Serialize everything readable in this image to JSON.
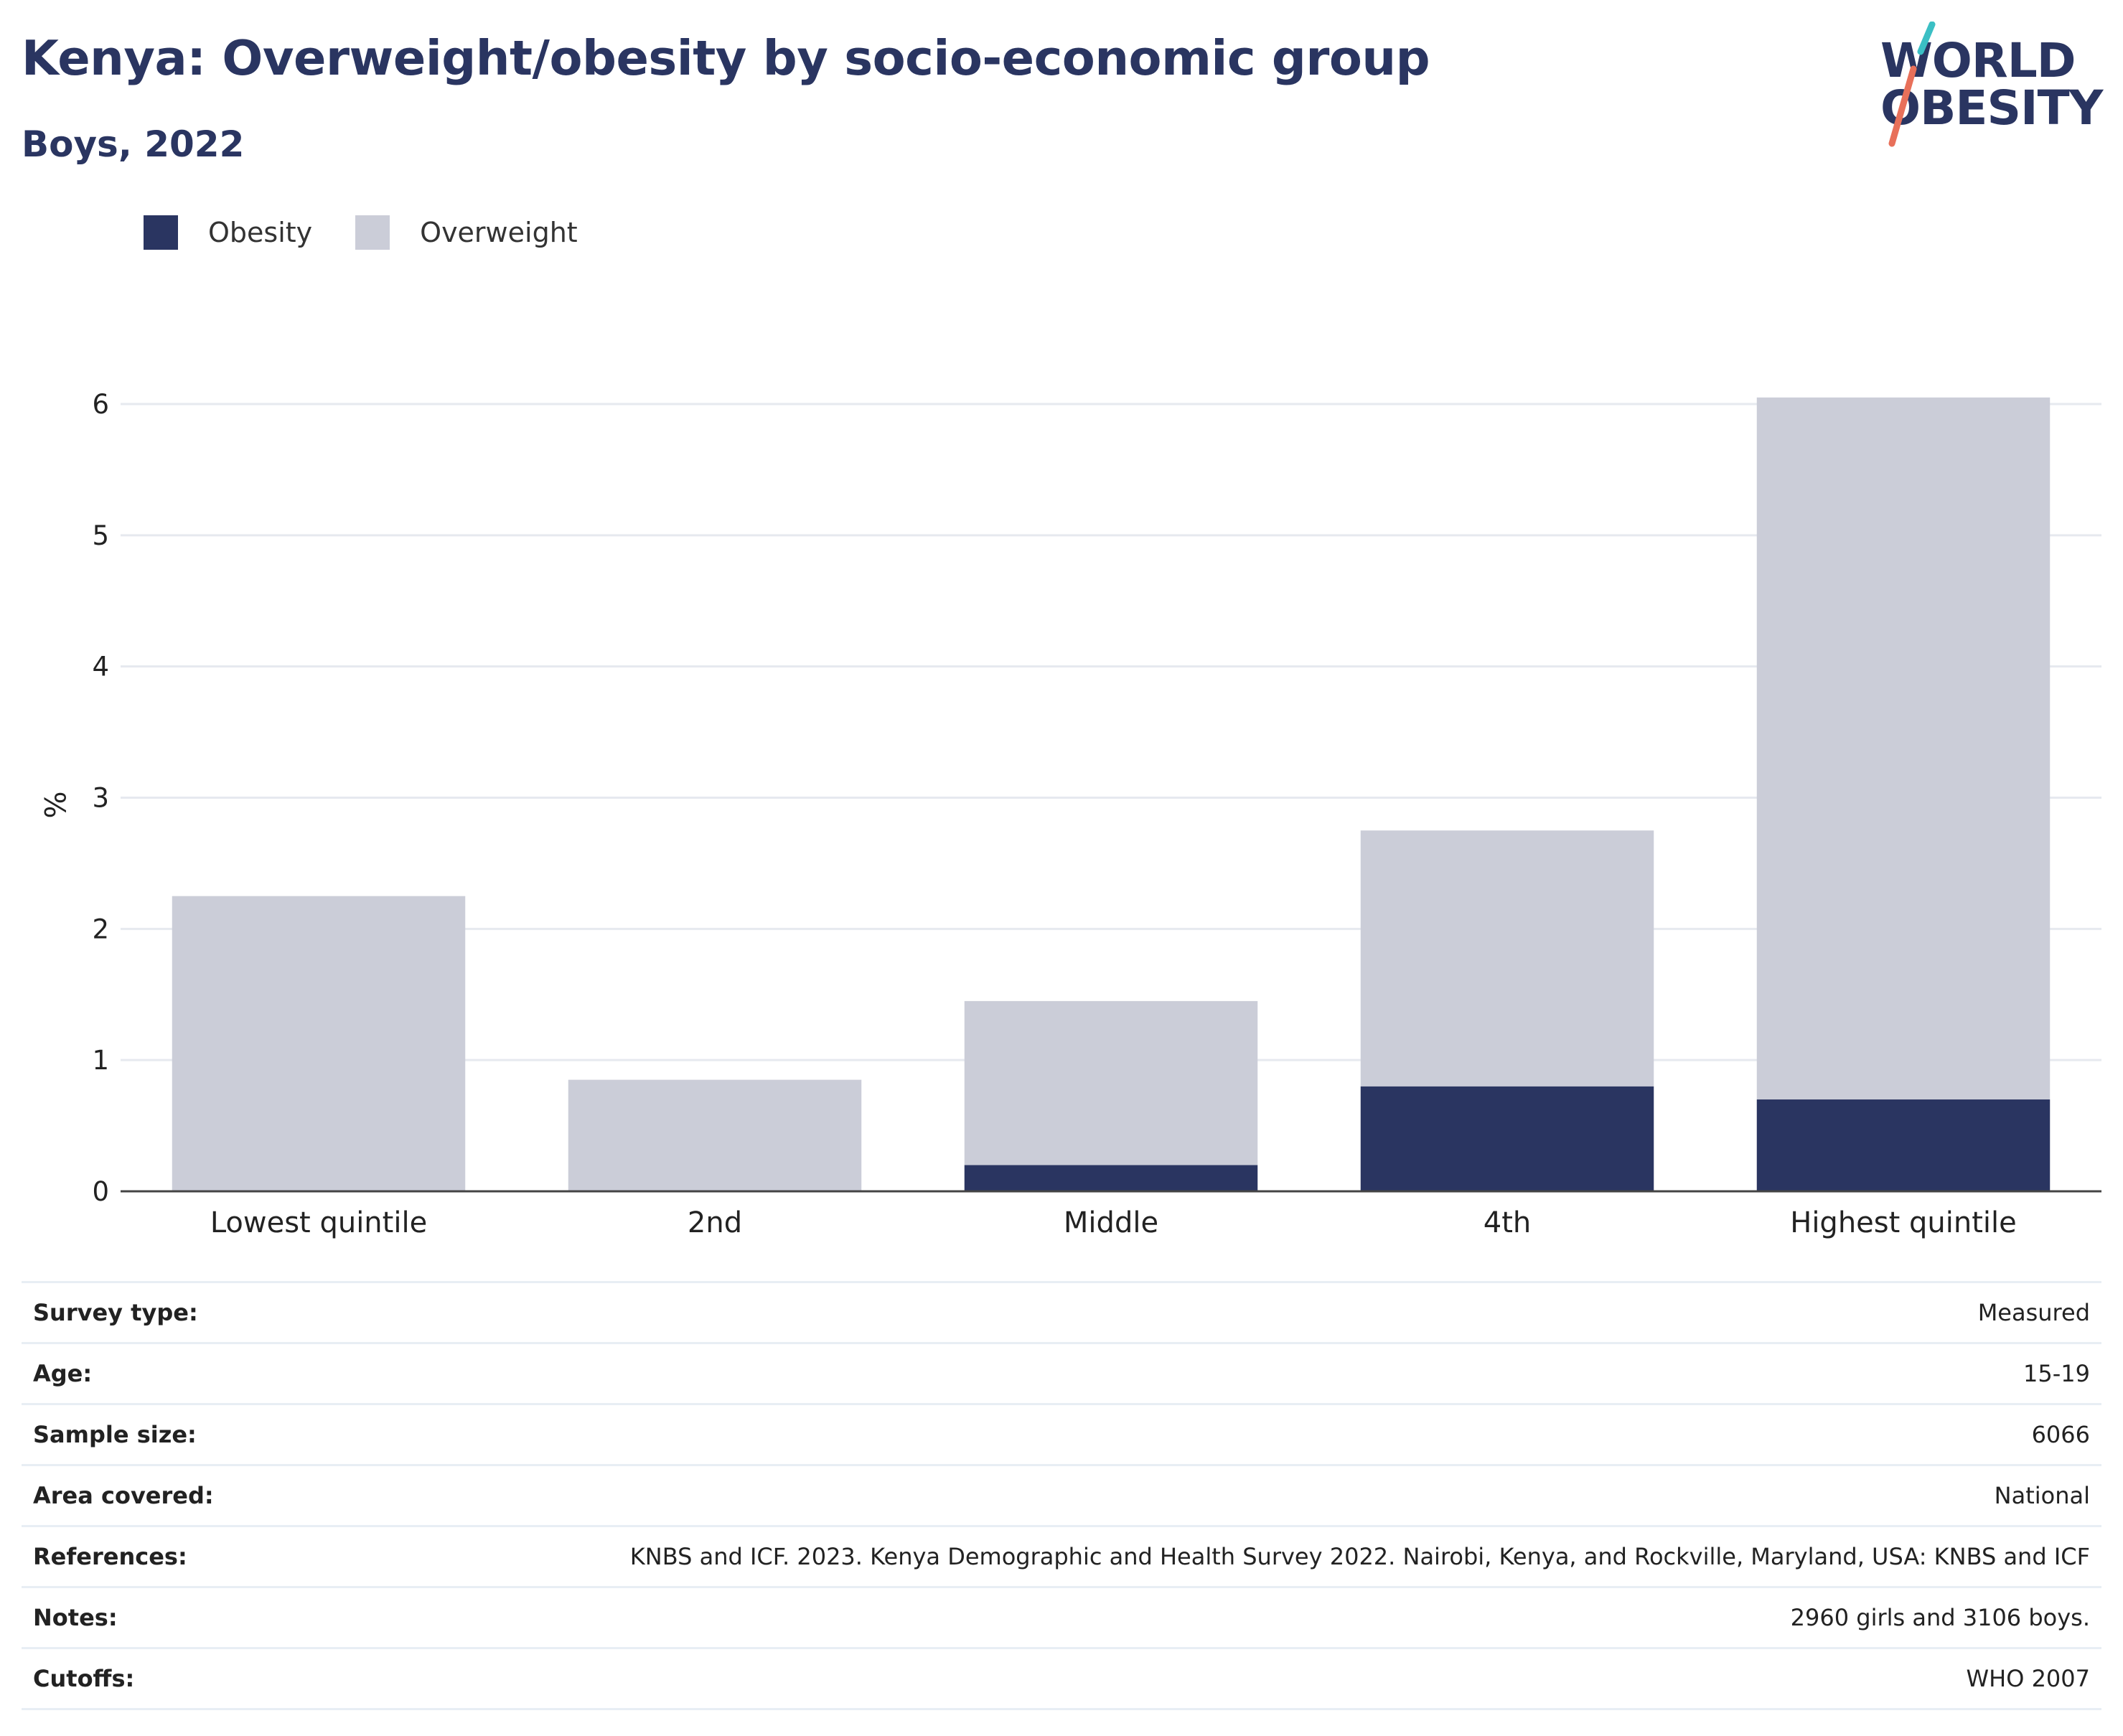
{
  "title": "Kenya: Overweight/obesity by socio-economic group",
  "subtitle": "Boys, 2022",
  "logo": {
    "line1": "WORLD",
    "line2": "OBESITY",
    "accent_teal": "#3bbfc4",
    "accent_coral": "#e8705a"
  },
  "legend": [
    {
      "label": "Obesity",
      "color": "#2a3561"
    },
    {
      "label": "Overweight",
      "color": "#cbcdd8"
    }
  ],
  "chart_data": {
    "type": "bar",
    "stacked": true,
    "categories": [
      "Lowest quintile",
      "2nd",
      "Middle",
      "4th",
      "Highest quintile"
    ],
    "series": [
      {
        "name": "Obesity",
        "color": "#2a3561",
        "values": [
          0,
          0,
          0.2,
          0.8,
          0.7
        ]
      },
      {
        "name": "Overweight",
        "color": "#cbcdd8",
        "values": [
          2.25,
          0.85,
          1.25,
          1.95,
          5.35
        ]
      }
    ],
    "ylabel": "%",
    "xlabel": "",
    "ylim": [
      0,
      6
    ],
    "yticks": [
      "0",
      "1",
      "2",
      "3",
      "4",
      "5",
      "6"
    ],
    "grid": true,
    "legend_position": "top-left"
  },
  "info": [
    {
      "label": "Survey type:",
      "value": "Measured"
    },
    {
      "label": "Age:",
      "value": "15-19"
    },
    {
      "label": "Sample size:",
      "value": "6066"
    },
    {
      "label": "Area covered:",
      "value": "National"
    },
    {
      "label": "References:",
      "value": "KNBS and ICF. 2023. Kenya Demographic and Health Survey 2022. Nairobi, Kenya, and Rockville, Maryland, USA: KNBS and ICF"
    },
    {
      "label": "Notes:",
      "value": "2960 girls and 3106 boys."
    },
    {
      "label": "Cutoffs:",
      "value": "WHO 2007"
    }
  ]
}
